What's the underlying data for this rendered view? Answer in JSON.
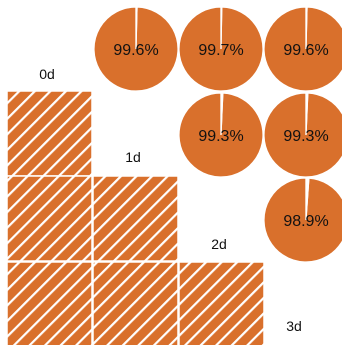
{
  "chart_data": {
    "type": "pie",
    "colors": {
      "fill": "#d9702c",
      "stroke": "#ffffff",
      "text": "#111111"
    },
    "diagonal_labels": [
      "0d",
      "1d",
      "2d",
      "3d"
    ],
    "matrix_cells": [
      {
        "row": 0,
        "col": 0,
        "pattern": "hatched"
      },
      {
        "row": 1,
        "col": 0,
        "pattern": "hatched"
      },
      {
        "row": 1,
        "col": 1,
        "pattern": "hatched"
      },
      {
        "row": 2,
        "col": 0,
        "pattern": "hatched"
      },
      {
        "row": 2,
        "col": 1,
        "pattern": "hatched"
      },
      {
        "row": 2,
        "col": 2,
        "pattern": "hatched"
      }
    ],
    "pies": [
      {
        "row": 0,
        "col": 1,
        "value": 99.6,
        "label": "99.6%"
      },
      {
        "row": 0,
        "col": 2,
        "value": 99.7,
        "label": "99.7%"
      },
      {
        "row": 0,
        "col": 3,
        "value": 99.6,
        "label": "99.6%"
      },
      {
        "row": 1,
        "col": 2,
        "value": 99.3,
        "label": "99.3%"
      },
      {
        "row": 1,
        "col": 3,
        "value": 99.3,
        "label": "99.3%"
      },
      {
        "row": 2,
        "col": 3,
        "value": 98.9,
        "label": "98.9%"
      }
    ]
  }
}
